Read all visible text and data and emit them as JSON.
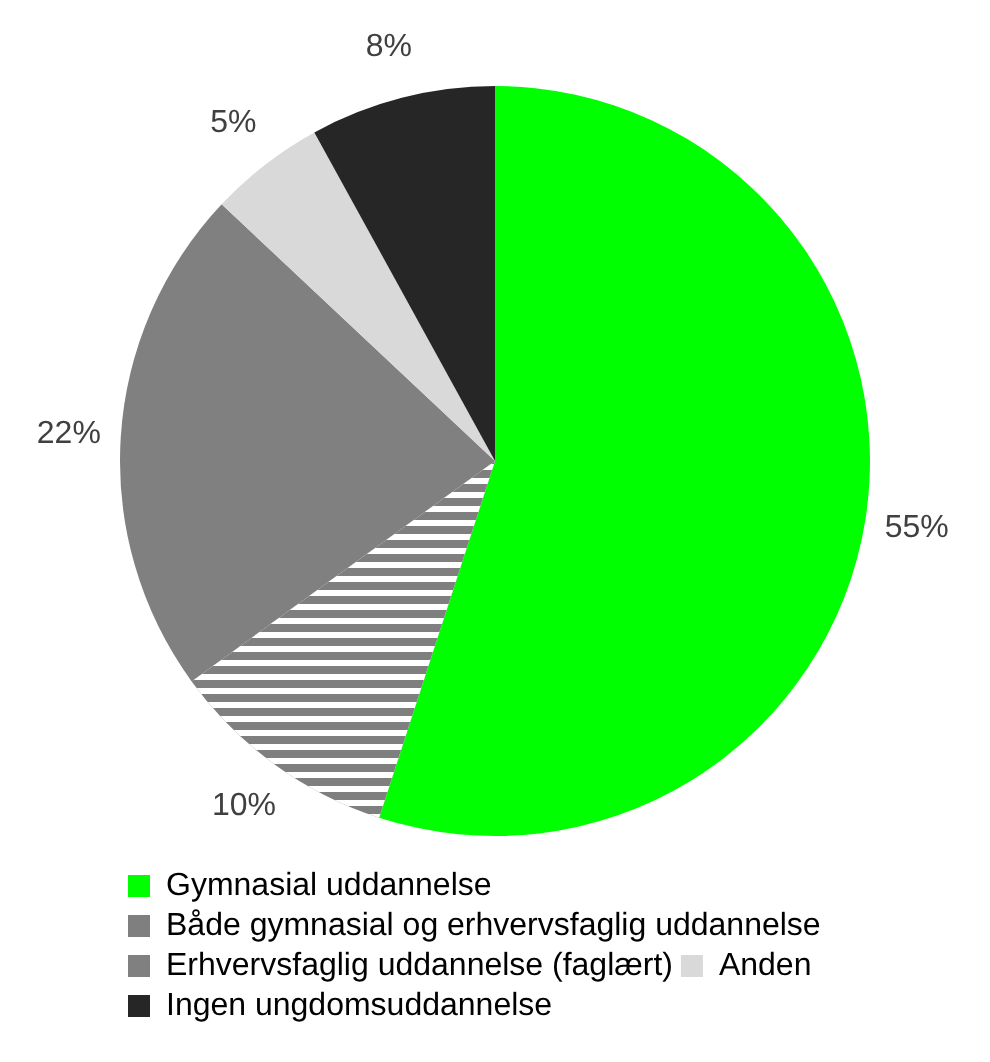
{
  "chart_data": {
    "type": "pie",
    "categories": [
      "Gymnasial uddannelse",
      "Både gymnasial og erhvervsfaglig uddannelse",
      "Erhvervsfaglig uddannelse (faglært)",
      "Anden",
      "Ingen ungdomsuddannelse"
    ],
    "values": [
      55,
      10,
      22,
      5,
      8
    ],
    "value_labels": [
      "55%",
      "10%",
      "22%",
      "5%",
      "8%"
    ],
    "colors": [
      "#00ff00",
      "#7f7f7f",
      "#808080",
      "#d9d9d9",
      "#262626"
    ],
    "legend": "bottom"
  }
}
